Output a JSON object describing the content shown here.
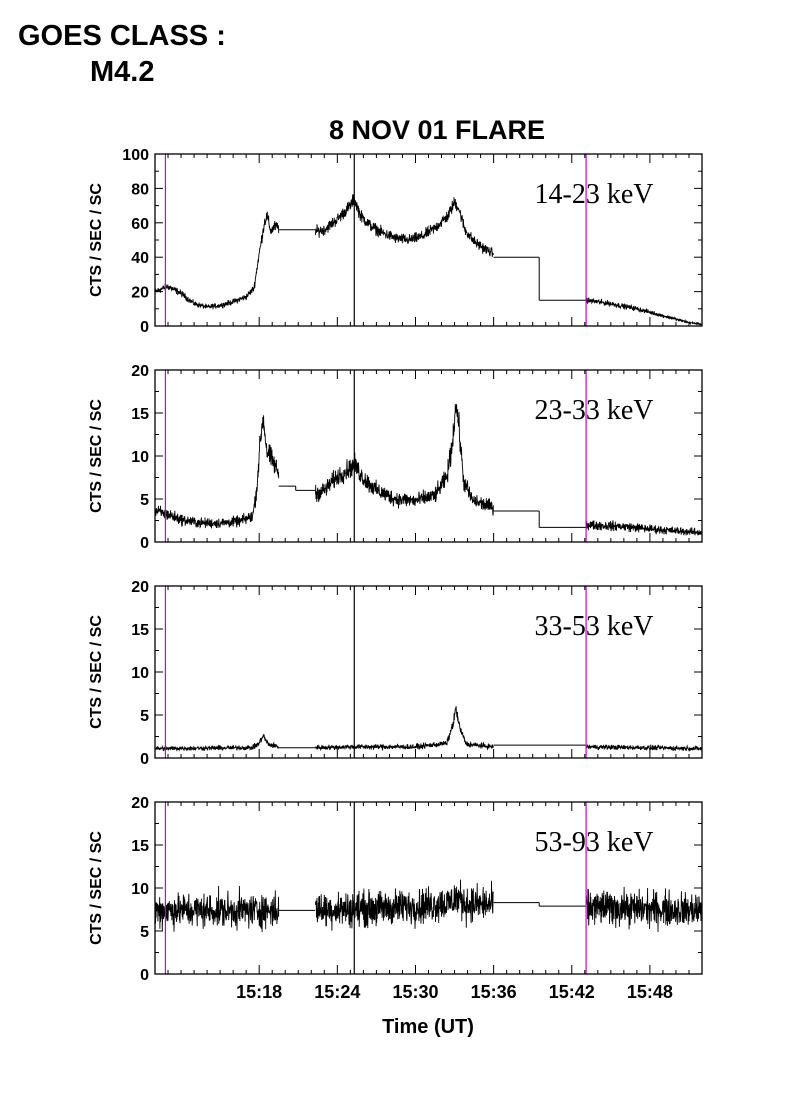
{
  "goes": {
    "line1": "GOES CLASS :",
    "line2": "M4.2"
  },
  "chart_data": {
    "type": "line",
    "title": "8 NOV 01 FLARE",
    "xlabel": "Time (UT)",
    "x_ticks": [
      "15:18",
      "15:24",
      "15:30",
      "15:36",
      "15:42",
      "15:48"
    ],
    "x_tick_minutes": [
      18,
      24,
      30,
      36,
      42,
      48
    ],
    "xlim_minutes_after_15h": [
      10.0,
      52.0
    ],
    "gaps_minutes": [
      [
        19.5,
        22.3
      ],
      [
        36.0,
        43.1
      ]
    ],
    "markers": [
      {
        "kind": "vertical-line",
        "color": "#cc00cc",
        "x_minutes": 10.8
      },
      {
        "kind": "vertical-line",
        "color": "#cc00cc",
        "x_minutes": 43.1
      },
      {
        "kind": "vertical-line",
        "color": "#000000",
        "x_minutes": 25.3
      }
    ],
    "panels": [
      {
        "band": "14-23 keV",
        "ylabel": "CTS / SEC / SC",
        "ylim": [
          0,
          100
        ],
        "yticks": [
          0,
          20,
          40,
          60,
          80,
          100
        ],
        "noise": 1.2,
        "series": [
          [
            10.0,
            20
          ],
          [
            11.0,
            23
          ],
          [
            12.0,
            19
          ],
          [
            13.0,
            13
          ],
          [
            14.0,
            11
          ],
          [
            15.0,
            12
          ],
          [
            16.0,
            14
          ],
          [
            17.0,
            17
          ],
          [
            17.6,
            22
          ],
          [
            18.0,
            42
          ],
          [
            18.4,
            60
          ],
          [
            18.6,
            64
          ],
          [
            18.9,
            55
          ],
          [
            19.2,
            58
          ],
          [
            19.5,
            57
          ],
          [
            22.3,
            55
          ],
          [
            23.0,
            56
          ],
          [
            24.0,
            62
          ],
          [
            25.0,
            70
          ],
          [
            25.3,
            74
          ],
          [
            25.8,
            64
          ],
          [
            26.6,
            58
          ],
          [
            27.5,
            54
          ],
          [
            28.5,
            51
          ],
          [
            29.5,
            50
          ],
          [
            30.5,
            52
          ],
          [
            31.5,
            57
          ],
          [
            32.5,
            64
          ],
          [
            33.0,
            72
          ],
          [
            33.3,
            69
          ],
          [
            33.8,
            56
          ],
          [
            34.5,
            49
          ],
          [
            35.3,
            45
          ],
          [
            36.0,
            42
          ],
          [
            43.1,
            15
          ],
          [
            45.0,
            13
          ],
          [
            47.0,
            10
          ],
          [
            49.0,
            6
          ],
          [
            51.0,
            2
          ],
          [
            52.0,
            1
          ]
        ],
        "steps": [
          [
            19.5,
            22.3,
            56
          ],
          [
            36.0,
            39.5,
            40
          ],
          [
            39.5,
            43.1,
            15
          ]
        ]
      },
      {
        "band": "23-33 keV",
        "ylabel": "CTS / SEC / SC",
        "ylim": [
          0,
          20
        ],
        "yticks": [
          0,
          5,
          10,
          15,
          20
        ],
        "noise": 0.55,
        "series": [
          [
            10.0,
            3.6
          ],
          [
            11.0,
            3.2
          ],
          [
            12.0,
            2.6
          ],
          [
            13.5,
            2.2
          ],
          [
            15.0,
            2.2
          ],
          [
            16.5,
            2.4
          ],
          [
            17.5,
            3.0
          ],
          [
            17.8,
            6.0
          ],
          [
            18.1,
            12.0
          ],
          [
            18.3,
            14.5
          ],
          [
            18.6,
            10.5
          ],
          [
            19.0,
            9.5
          ],
          [
            19.5,
            8.0
          ],
          [
            22.3,
            5.6
          ],
          [
            23.0,
            6.0
          ],
          [
            24.0,
            7.6
          ],
          [
            25.0,
            8.6
          ],
          [
            25.3,
            9.0
          ],
          [
            26.0,
            7.4
          ],
          [
            27.0,
            6.0
          ],
          [
            28.5,
            5.0
          ],
          [
            30.0,
            4.8
          ],
          [
            31.5,
            5.4
          ],
          [
            32.4,
            7.5
          ],
          [
            32.8,
            11.0
          ],
          [
            33.1,
            16.0
          ],
          [
            33.3,
            14.0
          ],
          [
            33.7,
            7.0
          ],
          [
            34.4,
            4.8
          ],
          [
            36.0,
            4.0
          ],
          [
            43.1,
            2.0
          ],
          [
            46.0,
            1.8
          ],
          [
            49.0,
            1.4
          ],
          [
            52.0,
            1.1
          ]
        ],
        "steps": [
          [
            19.5,
            20.8,
            6.5
          ],
          [
            20.8,
            22.3,
            6.0
          ],
          [
            36.0,
            39.5,
            3.6
          ],
          [
            39.5,
            43.1,
            1.7
          ]
        ]
      },
      {
        "band": "33-53 keV",
        "ylabel": "CTS / SEC / SC",
        "ylim": [
          0,
          20
        ],
        "yticks": [
          0,
          5,
          10,
          15,
          20
        ],
        "noise": 0.35,
        "series": [
          [
            10.0,
            1.1
          ],
          [
            17.5,
            1.2
          ],
          [
            18.0,
            1.7
          ],
          [
            18.3,
            2.6
          ],
          [
            18.7,
            1.6
          ],
          [
            19.5,
            1.3
          ],
          [
            22.3,
            1.2
          ],
          [
            25.0,
            1.3
          ],
          [
            30.0,
            1.3
          ],
          [
            32.4,
            1.7
          ],
          [
            32.9,
            4.0
          ],
          [
            33.1,
            5.8
          ],
          [
            33.4,
            3.5
          ],
          [
            33.9,
            1.6
          ],
          [
            36.0,
            1.3
          ],
          [
            43.1,
            1.3
          ],
          [
            52.0,
            1.1
          ]
        ],
        "steps": [
          [
            19.5,
            22.3,
            1.2
          ],
          [
            36.0,
            43.1,
            1.5
          ]
        ]
      },
      {
        "band": "53-93 keV",
        "ylabel": "CTS / SEC / SC",
        "ylim": [
          0,
          20
        ],
        "yticks": [
          0,
          5,
          10,
          15,
          20
        ],
        "noise": 1.0,
        "series": [
          [
            10.0,
            7.4
          ],
          [
            19.5,
            7.4
          ],
          [
            22.3,
            7.5
          ],
          [
            27.0,
            7.6
          ],
          [
            30.0,
            7.9
          ],
          [
            32.5,
            8.2
          ],
          [
            33.2,
            8.9
          ],
          [
            34.0,
            8.1
          ],
          [
            36.0,
            8.1
          ],
          [
            43.1,
            7.8
          ],
          [
            52.0,
            7.4
          ]
        ],
        "steps": [
          [
            19.5,
            22.3,
            7.4
          ],
          [
            36.0,
            39.5,
            8.3
          ],
          [
            39.5,
            43.1,
            7.9
          ]
        ]
      }
    ]
  }
}
